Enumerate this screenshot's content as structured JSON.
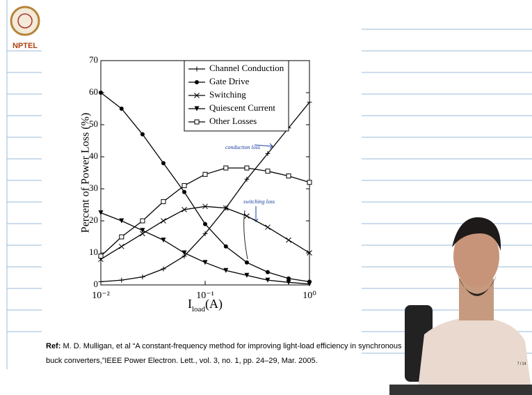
{
  "logo": "NPTEL",
  "chart_data": {
    "type": "line",
    "ylabel": "Percent of Power Loss (%)",
    "xlabel": {
      "main": "I",
      "sub": "load",
      "unit": "(A)"
    },
    "x": [
      0.01,
      0.0158,
      0.0251,
      0.0398,
      0.0631,
      0.1,
      0.158,
      0.251,
      0.398,
      0.631,
      1
    ],
    "xlim": [
      0.01,
      1
    ],
    "xscale": "log",
    "xticks": [
      {
        "value": 0.01,
        "label": "10⁻²"
      },
      {
        "value": 0.1,
        "label": "10⁻¹"
      },
      {
        "value": 1,
        "label": "10⁰"
      }
    ],
    "ylim": [
      0,
      70
    ],
    "yticks": [
      0,
      10,
      20,
      30,
      40,
      50,
      60,
      70
    ],
    "legend": "upper-right",
    "series": [
      {
        "name": "Channel Conduction",
        "color": "#000000",
        "marker": "plus",
        "values": [
          1,
          1.5,
          2.5,
          5,
          9,
          16,
          24,
          33,
          41,
          49,
          57
        ]
      },
      {
        "name": "Gate Drive",
        "color": "#000000",
        "marker": "circle",
        "values": [
          60,
          55,
          47,
          38,
          29,
          19,
          12,
          7,
          4,
          2,
          1
        ]
      },
      {
        "name": "Switching",
        "color": "#000000",
        "marker": "cross",
        "values": [
          8,
          12,
          16,
          20,
          23.5,
          24.5,
          24,
          21.5,
          18,
          14,
          10
        ]
      },
      {
        "name": "Quiescent Current",
        "color": "#000000",
        "marker": "triangle",
        "values": [
          22.5,
          20,
          17,
          14,
          10,
          7,
          4.5,
          3,
          1.5,
          0.8,
          0.3
        ]
      },
      {
        "name": "Other Losses",
        "color": "#000000",
        "marker": "square",
        "values": [
          9,
          15,
          20,
          26,
          31,
          34.5,
          36.5,
          36.5,
          35.5,
          34,
          32
        ]
      }
    ],
    "annotations": [
      "conduction loss",
      "switching loss"
    ]
  },
  "reference": {
    "bold": "Ref:",
    "line1": "M. D. Mulligan, et al “A constant-frequency method for improving light-load efficiency in synchronous",
    "line2": "buck converters,”IEEE Power Electron. Lett., vol. 3, no. 1, pp. 24–29, Mar. 2005."
  },
  "page_number": "7 / 14"
}
